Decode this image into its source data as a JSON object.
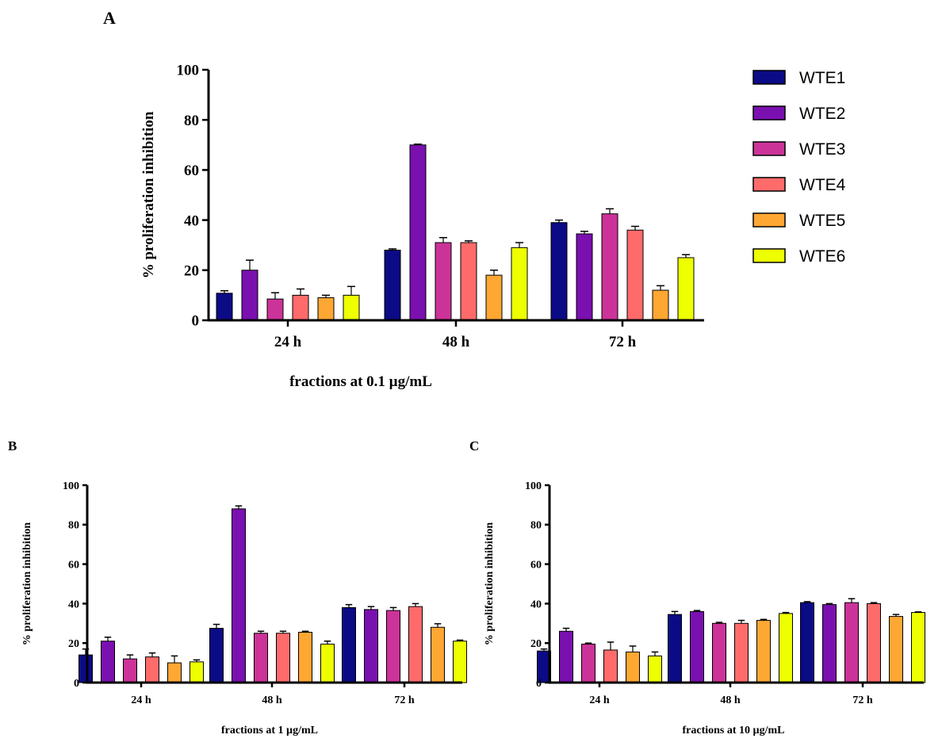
{
  "chart_data": [
    {
      "panel": "A",
      "type": "bar",
      "xlabel": "fractions at 0.1 µg/mL",
      "ylabel": "% proliferation inhibition",
      "ylim": [
        0,
        100
      ],
      "yticks": [
        0,
        20,
        40,
        60,
        80,
        100
      ],
      "categories": [
        "24 h",
        "48 h",
        "72 h"
      ],
      "series": [
        {
          "name": "WTE1",
          "values": [
            10.8,
            28,
            39
          ],
          "errors": [
            1,
            0.5,
            1
          ]
        },
        {
          "name": "WTE2",
          "values": [
            20,
            70,
            34.5
          ],
          "errors": [
            4,
            0.3,
            1
          ]
        },
        {
          "name": "WTE3",
          "values": [
            8.5,
            31,
            42.5
          ],
          "errors": [
            2.5,
            2,
            2
          ]
        },
        {
          "name": "WTE4",
          "values": [
            10,
            31,
            36
          ],
          "errors": [
            2.5,
            0.7,
            1.5
          ]
        },
        {
          "name": "WTE5",
          "values": [
            9,
            18,
            12
          ],
          "errors": [
            1,
            2,
            1.8
          ]
        },
        {
          "name": "WTE6",
          "values": [
            10,
            29,
            25
          ],
          "errors": [
            3.5,
            2,
            1.2
          ]
        }
      ]
    },
    {
      "panel": "B",
      "type": "bar",
      "xlabel": "fractions at 1 µg/mL",
      "ylabel": "% proliferation inhibition",
      "ylim": [
        0,
        100
      ],
      "yticks": [
        0,
        20,
        40,
        60,
        80,
        100
      ],
      "categories": [
        "24 h",
        "48 h",
        "72 h"
      ],
      "series": [
        {
          "name": "WTE1",
          "values": [
            14,
            27.5,
            38
          ],
          "errors": [
            3,
            2,
            1.5
          ]
        },
        {
          "name": "WTE2",
          "values": [
            21,
            88,
            37
          ],
          "errors": [
            2,
            1.5,
            1.5
          ]
        },
        {
          "name": "WTE3",
          "values": [
            12,
            25,
            36.5
          ],
          "errors": [
            2,
            1,
            1.5
          ]
        },
        {
          "name": "WTE4",
          "values": [
            13,
            25,
            38.5
          ],
          "errors": [
            2,
            1,
            1.5
          ]
        },
        {
          "name": "WTE5",
          "values": [
            10,
            25.5,
            28
          ],
          "errors": [
            3.5,
            0.5,
            1.8
          ]
        },
        {
          "name": "WTE6",
          "values": [
            10.5,
            19.5,
            21
          ],
          "errors": [
            1,
            1.5,
            0.5
          ]
        }
      ]
    },
    {
      "panel": "C",
      "type": "bar",
      "xlabel": "fractions at 10 µg/mL",
      "ylabel": "% proliferation inhibition",
      "ylim": [
        0,
        100
      ],
      "yticks": [
        0,
        20,
        40,
        60,
        80,
        100
      ],
      "categories": [
        "24 h",
        "48 h",
        "72 h"
      ],
      "series": [
        {
          "name": "WTE1",
          "values": [
            16,
            34.5,
            40.5
          ],
          "errors": [
            1,
            1.5,
            0.5
          ]
        },
        {
          "name": "WTE2",
          "values": [
            26,
            36,
            39.5
          ],
          "errors": [
            1.5,
            0.5,
            0.5
          ]
        },
        {
          "name": "WTE3",
          "values": [
            19.5,
            30,
            40.5
          ],
          "errors": [
            0.5,
            0.5,
            2
          ]
        },
        {
          "name": "WTE4",
          "values": [
            16.5,
            30,
            40
          ],
          "errors": [
            4,
            1.5,
            0.5
          ]
        },
        {
          "name": "WTE5",
          "values": [
            15.5,
            31.5,
            33.5
          ],
          "errors": [
            3,
            0.5,
            1
          ]
        },
        {
          "name": "WTE6",
          "values": [
            13.5,
            35,
            35.5
          ],
          "errors": [
            2,
            0.5,
            0.3
          ]
        }
      ]
    }
  ],
  "colors": [
    "#0b0b86",
    "#7a10b0",
    "#cc3399",
    "#ff6b6b",
    "#ffa733",
    "#eeff00"
  ],
  "legend": {
    "placement": "right of panel A"
  }
}
